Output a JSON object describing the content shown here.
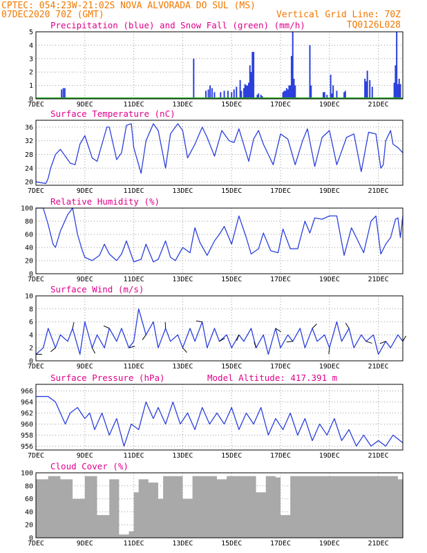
{
  "header": {
    "left_line1": "CPTEC:  054:23W-21:02S  NOVA ALVORADA DO SUL (MS)",
    "left_line2": "07DEC2020 70Z (GMT)",
    "right_line2": "Vertical Grid Line: 70Z",
    "right_line3": "TQ0126L028"
  },
  "colors": {
    "header": "#f07800",
    "title": "#e0008a",
    "line": "#2a3fdc",
    "snow": "#22aa22",
    "cloud": "#a9a9a9"
  },
  "chart_data": [
    {
      "type": "bar",
      "title": "Precipitation (blue) and Snow Fall (green) (mm/h)",
      "x_ticks": [
        "7DEC",
        "9DEC",
        "11DEC",
        "13DEC",
        "15DEC",
        "17DEC",
        "19DEC",
        "21DEC"
      ],
      "y_ticks": [
        "0",
        "1",
        "2",
        "3",
        "4",
        "5"
      ],
      "ylim": [
        0,
        5
      ],
      "x_range_days": [
        0,
        15
      ],
      "series": [
        {
          "name": "Precipitation",
          "x": [
            1.05,
            1.12,
            1.18,
            6.45,
            6.95,
            7.05,
            7.12,
            7.2,
            7.3,
            7.55,
            7.7,
            7.85,
            8.0,
            8.1,
            8.2,
            8.35,
            8.4,
            8.5,
            8.55,
            8.6,
            8.65,
            8.7,
            8.75,
            8.8,
            8.85,
            8.9,
            9.05,
            9.1,
            9.2,
            9.25,
            10.1,
            10.15,
            10.2,
            10.25,
            10.3,
            10.35,
            10.4,
            10.45,
            10.5,
            10.55,
            10.6,
            11.2,
            11.25,
            11.75,
            11.8,
            11.9,
            12.05,
            12.1,
            12.15,
            12.3,
            12.6,
            12.65,
            13.45,
            13.5,
            13.55,
            13.65,
            13.75,
            14.65,
            14.7,
            14.75,
            14.8,
            14.85,
            14.9
          ],
          "values": [
            0.7,
            0.8,
            0.8,
            3.0,
            0.6,
            0.7,
            1.0,
            0.8,
            0.5,
            0.5,
            0.6,
            0.6,
            0.5,
            0.7,
            0.9,
            1.4,
            0.6,
            0.8,
            1.1,
            1.0,
            1.0,
            1.2,
            2.5,
            2.0,
            3.5,
            3.5,
            0.3,
            0.4,
            0.3,
            0.2,
            0.5,
            0.6,
            0.6,
            0.8,
            0.7,
            1.0,
            1.0,
            3.2,
            5.0,
            1.5,
            1.0,
            4.0,
            1.0,
            0.5,
            0.5,
            0.3,
            1.8,
            0.4,
            1.0,
            0.6,
            0.5,
            0.6,
            1.5,
            1.3,
            2.1,
            1.4,
            0.9,
            1.2,
            2.5,
            5.0,
            1.1,
            1.5,
            1.1
          ]
        },
        {
          "name": "Snow Fall",
          "x": [
            0,
            15
          ],
          "values": [
            0,
            0
          ]
        }
      ]
    },
    {
      "type": "line",
      "title": "Surface Temperature (nC)",
      "x_ticks": [
        "7DEC",
        "9DEC",
        "11DEC",
        "13DEC",
        "15DEC",
        "17DEC",
        "19DEC",
        "21DEC"
      ],
      "y_ticks": [
        "20",
        "24",
        "28",
        "32",
        "36"
      ],
      "ylim": [
        19,
        38
      ],
      "x": [
        0,
        0.4,
        0.5,
        0.6,
        0.8,
        1.0,
        1.4,
        1.6,
        1.8,
        2.0,
        2.3,
        2.5,
        2.7,
        2.9,
        3.0,
        3.3,
        3.5,
        3.7,
        3.9,
        4.0,
        4.3,
        4.5,
        4.8,
        5.0,
        5.3,
        5.5,
        5.8,
        6.0,
        6.2,
        6.5,
        6.8,
        7.0,
        7.3,
        7.6,
        7.9,
        8.1,
        8.3,
        8.7,
        8.9,
        9.1,
        9.3,
        9.7,
        10.0,
        10.3,
        10.6,
        10.9,
        11.1,
        11.4,
        11.7,
        12.0,
        12.3,
        12.7,
        13.0,
        13.3,
        13.6,
        13.9,
        14.1,
        14.2,
        14.3,
        14.5,
        14.6,
        14.8,
        15.0
      ],
      "values": [
        20,
        19.5,
        21,
        24,
        28,
        29.5,
        25.5,
        25,
        31,
        33.5,
        27,
        26,
        31,
        36,
        36,
        26.5,
        28.5,
        36.5,
        37,
        30,
        22.5,
        32,
        37,
        35,
        24,
        34,
        37,
        35,
        27,
        31,
        36,
        33,
        27.5,
        35,
        32,
        31.5,
        35.5,
        26,
        32.5,
        35,
        31,
        25,
        34,
        32.5,
        25,
        32,
        35.5,
        24.5,
        33,
        35,
        25,
        33,
        34,
        23,
        34.5,
        34,
        24,
        25,
        32,
        35,
        31,
        30,
        28.5
      ]
    },
    {
      "type": "line",
      "title": "Relative Humidity (%)",
      "x_ticks": [
        "7DEC",
        "9DEC",
        "11DEC",
        "13DEC",
        "15DEC",
        "17DEC",
        "19DEC",
        "21DEC"
      ],
      "y_ticks": [
        "0",
        "20",
        "40",
        "60",
        "80",
        "100"
      ],
      "ylim": [
        0,
        100
      ],
      "x": [
        0,
        0.3,
        0.5,
        0.7,
        0.8,
        1.0,
        1.3,
        1.5,
        1.7,
        1.9,
        2.0,
        2.3,
        2.6,
        2.8,
        3.0,
        3.3,
        3.5,
        3.7,
        4.0,
        4.3,
        4.5,
        4.8,
        5.0,
        5.3,
        5.5,
        5.7,
        6.0,
        6.3,
        6.5,
        6.7,
        7.0,
        7.3,
        7.5,
        7.7,
        8.0,
        8.3,
        8.6,
        8.8,
        9.1,
        9.3,
        9.6,
        9.9,
        10.1,
        10.4,
        10.7,
        11.0,
        11.2,
        11.4,
        11.7,
        12.0,
        12.3,
        12.6,
        12.9,
        13.1,
        13.4,
        13.7,
        13.9,
        14.1,
        14.3,
        14.5,
        14.7,
        14.8,
        14.9,
        15.0
      ],
      "values": [
        100,
        100,
        75,
        45,
        40,
        65,
        90,
        100,
        60,
        35,
        25,
        20,
        28,
        45,
        30,
        20,
        30,
        50,
        18,
        22,
        45,
        18,
        22,
        50,
        25,
        20,
        40,
        32,
        70,
        48,
        28,
        50,
        60,
        72,
        45,
        88,
        55,
        30,
        38,
        62,
        35,
        32,
        68,
        38,
        38,
        80,
        62,
        85,
        83,
        88,
        88,
        28,
        70,
        55,
        32,
        80,
        88,
        30,
        45,
        55,
        83,
        85,
        55,
        88
      ]
    },
    {
      "type": "line",
      "title": "Surface Wind (m/s)",
      "x_ticks": [
        "7DEC",
        "9DEC",
        "11DEC",
        "13DEC",
        "15DEC",
        "17DEC",
        "19DEC",
        "21DEC"
      ],
      "y_ticks": [
        "0",
        "2",
        "4",
        "6",
        "8",
        "10"
      ],
      "ylim": [
        0,
        10
      ],
      "x": [
        0,
        0.3,
        0.5,
        0.8,
        1.0,
        1.3,
        1.5,
        1.8,
        2.0,
        2.3,
        2.5,
        2.8,
        3.0,
        3.3,
        3.5,
        3.8,
        4.0,
        4.2,
        4.5,
        4.8,
        5.0,
        5.3,
        5.5,
        5.8,
        6.0,
        6.3,
        6.5,
        6.8,
        7.0,
        7.3,
        7.5,
        7.8,
        8.0,
        8.3,
        8.5,
        8.8,
        9.0,
        9.3,
        9.5,
        9.8,
        10.0,
        10.3,
        10.5,
        10.8,
        11.0,
        11.3,
        11.5,
        11.8,
        12.0,
        12.3,
        12.5,
        12.8,
        13.0,
        13.3,
        13.5,
        13.8,
        14.0,
        14.3,
        14.5,
        14.8,
        15.0
      ],
      "values": [
        1,
        2,
        5,
        2,
        4,
        3,
        5,
        1,
        6,
        2,
        4,
        2,
        5,
        3,
        5,
        2,
        3,
        8,
        4,
        6,
        2,
        5,
        3,
        4,
        2,
        5,
        3,
        6,
        2,
        5,
        3,
        4,
        2,
        4,
        3,
        5,
        2,
        4,
        1,
        5,
        2,
        4,
        3,
        5,
        2,
        5,
        3,
        4,
        2,
        6,
        3,
        5,
        2,
        4,
        3,
        4,
        1,
        3,
        2,
        4,
        3
      ]
    },
    {
      "type": "line",
      "title": "Surface Pressure (hPa)",
      "subtitle": "Model Altitude: 417.391 m",
      "x_ticks": [
        "7DEC",
        "9DEC",
        "11DEC",
        "13DEC",
        "15DEC",
        "17DEC",
        "19DEC",
        "21DEC"
      ],
      "y_ticks": [
        "956",
        "958",
        "960",
        "962",
        "964",
        "966"
      ],
      "ylim": [
        955.3,
        967.2
      ],
      "x": [
        0,
        0.3,
        0.5,
        0.8,
        1.0,
        1.2,
        1.4,
        1.7,
        2.0,
        2.2,
        2.4,
        2.7,
        3.0,
        3.3,
        3.6,
        3.9,
        4.2,
        4.5,
        4.8,
        5.0,
        5.3,
        5.6,
        5.9,
        6.2,
        6.5,
        6.8,
        7.1,
        7.4,
        7.7,
        8.0,
        8.3,
        8.6,
        8.9,
        9.2,
        9.5,
        9.8,
        10.1,
        10.4,
        10.7,
        11.0,
        11.3,
        11.6,
        11.9,
        12.2,
        12.5,
        12.8,
        13.1,
        13.4,
        13.7,
        14.0,
        14.3,
        14.6,
        15.0
      ],
      "values": [
        965,
        965,
        965,
        964,
        962,
        960,
        962,
        963,
        961,
        962,
        959,
        962,
        958,
        961,
        956,
        960,
        959,
        964,
        961,
        963,
        960,
        964,
        960,
        962,
        959,
        963,
        960,
        962,
        960,
        963,
        959,
        962,
        960,
        963,
        958,
        961,
        959,
        962,
        958,
        961,
        957,
        960,
        958,
        961,
        957,
        959,
        956,
        958,
        956,
        957,
        956,
        958,
        956.6
      ]
    },
    {
      "type": "bar",
      "title": "Cloud Cover (%)",
      "x_ticks": [
        "7DEC",
        "9DEC",
        "11DEC",
        "13DEC",
        "15DEC",
        "17DEC",
        "19DEC",
        "21DEC"
      ],
      "y_ticks": [
        "0",
        "20",
        "40",
        "60",
        "80",
        "100"
      ],
      "ylim": [
        0,
        100
      ],
      "x": [
        0,
        0.5,
        1.0,
        1.5,
        2.0,
        2.5,
        3.0,
        3.4,
        3.8,
        4.0,
        4.2,
        4.6,
        5.0,
        5.2,
        5.4,
        5.8,
        6.0,
        6.4,
        6.8,
        7.0,
        7.4,
        7.8,
        8.0,
        8.4,
        8.8,
        9.0,
        9.4,
        9.8,
        10.0,
        10.4,
        10.8,
        11.0,
        11.4,
        11.8,
        12.0,
        12.4,
        12.8,
        13.0,
        13.4,
        13.8,
        14.0,
        14.4,
        14.8
      ],
      "values": [
        90,
        95,
        90,
        60,
        95,
        35,
        90,
        5,
        10,
        70,
        90,
        85,
        60,
        95,
        95,
        95,
        60,
        95,
        95,
        95,
        90,
        95,
        95,
        95,
        95,
        70,
        95,
        93,
        35,
        95,
        95,
        95,
        95,
        95,
        95,
        95,
        95,
        95,
        95,
        95,
        95,
        95,
        90
      ]
    }
  ]
}
